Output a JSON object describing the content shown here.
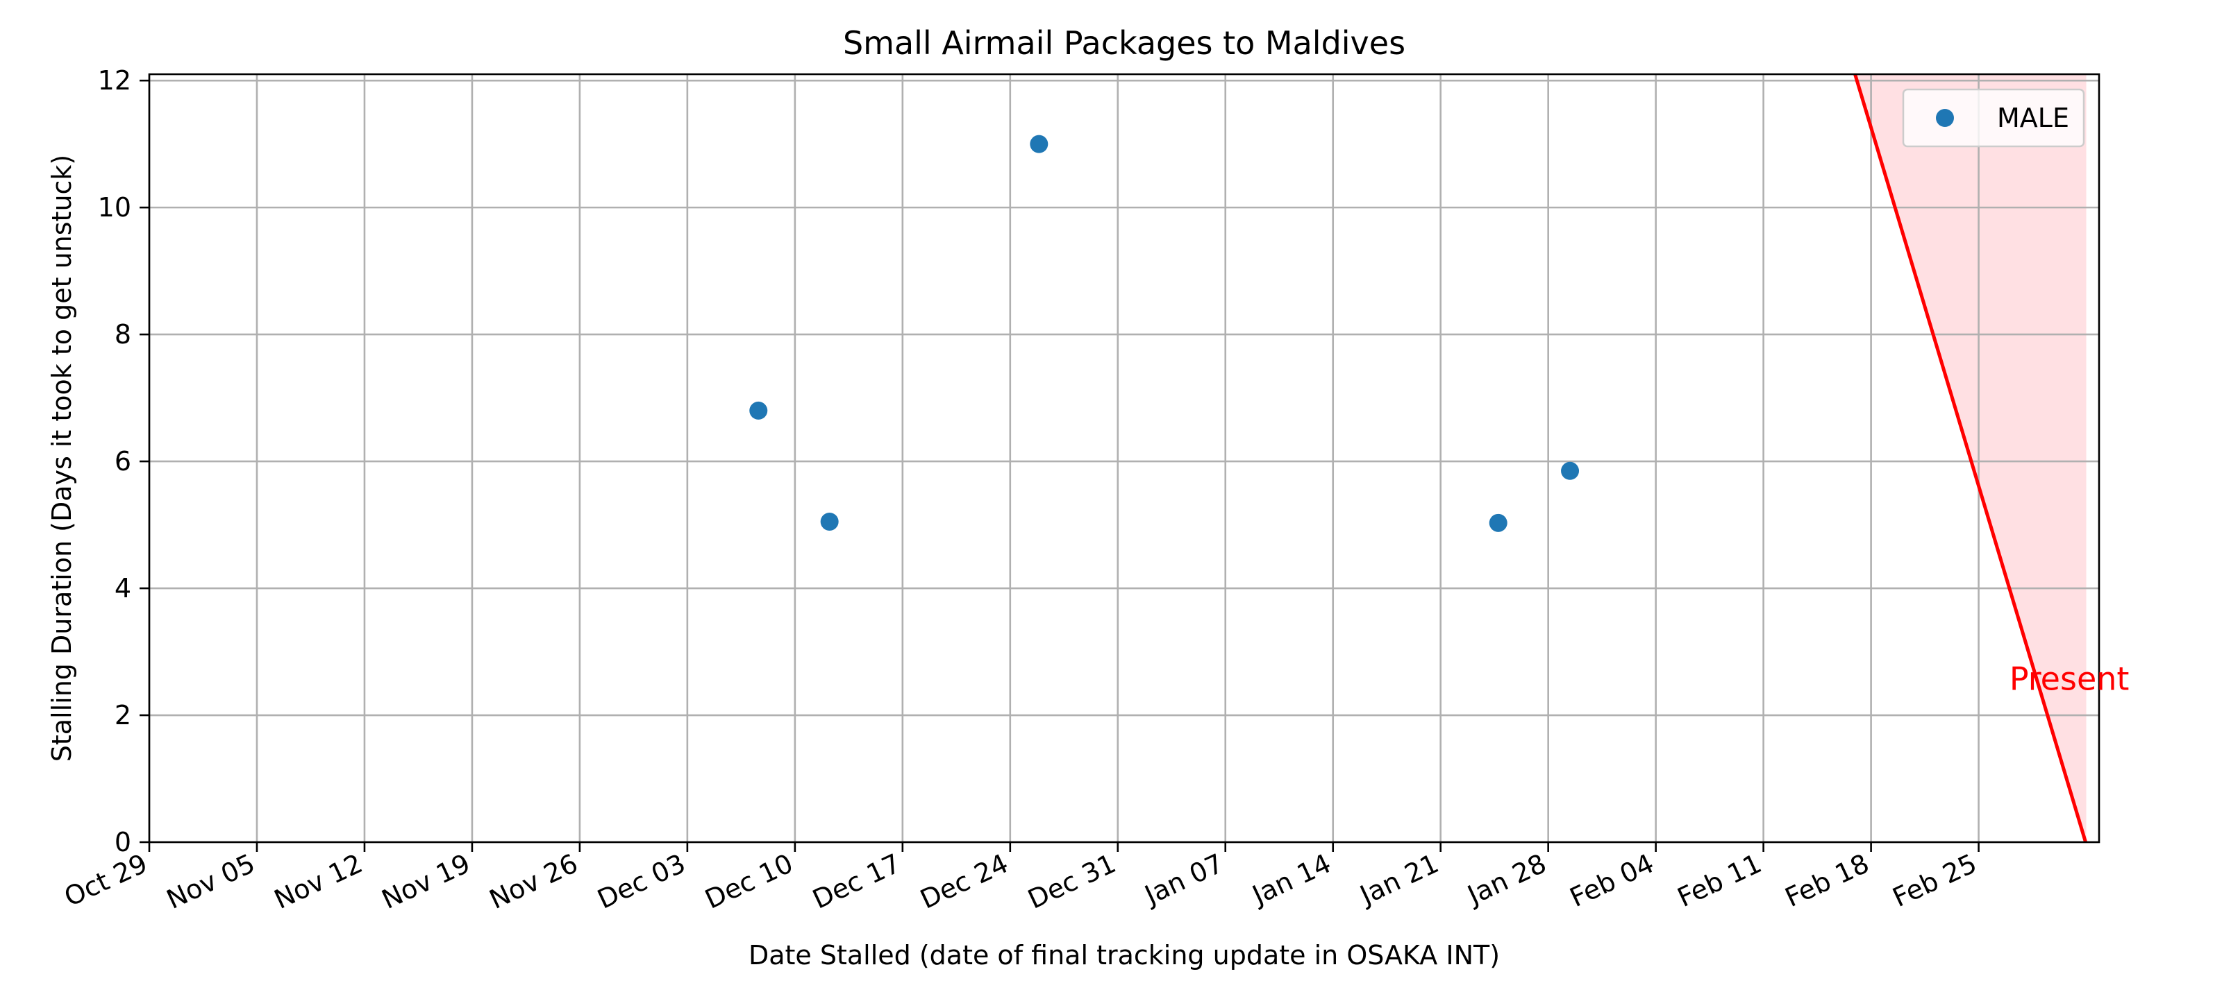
{
  "chart_data": {
    "type": "scatter",
    "title": "Small Airmail Packages to Maldives",
    "xlabel": "Date Stalled (date of final tracking update in OSAKA INT)",
    "ylabel": "Stalling Duration (Days it took to get unstuck)",
    "x_type": "date",
    "xlim": [
      "2023-10-29",
      "2024-03-03T20:00"
    ],
    "ylim": [
      0,
      12.1
    ],
    "x_ticks": [
      {
        "label": "Oct 29",
        "date": "2023-10-29"
      },
      {
        "label": "Nov 05",
        "date": "2023-11-05"
      },
      {
        "label": "Nov 12",
        "date": "2023-11-12"
      },
      {
        "label": "Nov 19",
        "date": "2023-11-19"
      },
      {
        "label": "Nov 26",
        "date": "2023-11-26"
      },
      {
        "label": "Dec 03",
        "date": "2023-12-03"
      },
      {
        "label": "Dec 10",
        "date": "2023-12-10"
      },
      {
        "label": "Dec 17",
        "date": "2023-12-17"
      },
      {
        "label": "Dec 24",
        "date": "2023-12-24"
      },
      {
        "label": "Dec 31",
        "date": "2023-12-31"
      },
      {
        "label": "Jan 07",
        "date": "2024-01-07"
      },
      {
        "label": "Jan 14",
        "date": "2024-01-14"
      },
      {
        "label": "Jan 21",
        "date": "2024-01-21"
      },
      {
        "label": "Jan 28",
        "date": "2024-01-28"
      },
      {
        "label": "Feb 04",
        "date": "2024-02-04"
      },
      {
        "label": "Feb 11",
        "date": "2024-02-11"
      },
      {
        "label": "Feb 18",
        "date": "2024-02-18"
      },
      {
        "label": "Feb 25",
        "date": "2024-02-25"
      }
    ],
    "y_ticks": [
      {
        "label": "0",
        "value": 0
      },
      {
        "label": "2",
        "value": 2
      },
      {
        "label": "4",
        "value": 4
      },
      {
        "label": "6",
        "value": 6
      },
      {
        "label": "8",
        "value": 8
      },
      {
        "label": "10",
        "value": 10
      },
      {
        "label": "12",
        "value": 12
      }
    ],
    "grid": true,
    "legend": {
      "position": "top-right"
    },
    "series": [
      {
        "name": "MALE",
        "color": "#1f77b4",
        "points": [
          {
            "x": "2023-12-07T15:00",
            "y": 6.8
          },
          {
            "x": "2023-12-12T06:00",
            "y": 5.05
          },
          {
            "x": "2023-12-25T21:00",
            "y": 11.0
          },
          {
            "x": "2024-01-24T18:00",
            "y": 5.03
          },
          {
            "x": "2024-01-29T10:00",
            "y": 5.85
          }
        ]
      }
    ],
    "present_line": {
      "label": "Present",
      "color": "#ff0000",
      "shade_color": "#ffe0e3",
      "points": [
        {
          "x": "2024-02-16T23:00",
          "y": 12.1
        },
        {
          "x": "2024-03-02T23:00",
          "y": 0
        }
      ],
      "shade_to": "2024-03-03T00:00",
      "label_at": {
        "x": "2024-02-27T00:00",
        "y": 2.4
      }
    }
  }
}
